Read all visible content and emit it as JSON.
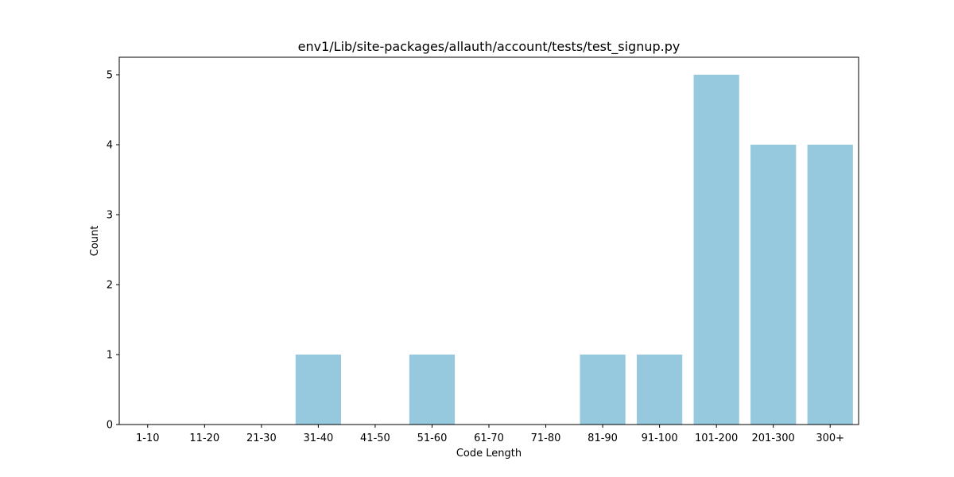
{
  "chart_data": {
    "type": "bar",
    "title": "env1/Lib/site-packages/allauth/account/tests/test_signup.py",
    "xlabel": "Code Length",
    "ylabel": "Count",
    "categories": [
      "1-10",
      "11-20",
      "21-30",
      "31-40",
      "41-50",
      "51-60",
      "61-70",
      "71-80",
      "81-90",
      "91-100",
      "101-200",
      "201-300",
      "300+"
    ],
    "values": [
      0,
      0,
      0,
      1,
      0,
      1,
      0,
      0,
      1,
      1,
      5,
      4,
      4
    ],
    "ylim": [
      0,
      5.25
    ],
    "yticks": [
      0,
      1,
      2,
      3,
      4,
      5
    ],
    "bar_color": "#96c9de",
    "grid": false,
    "legend": "none"
  }
}
